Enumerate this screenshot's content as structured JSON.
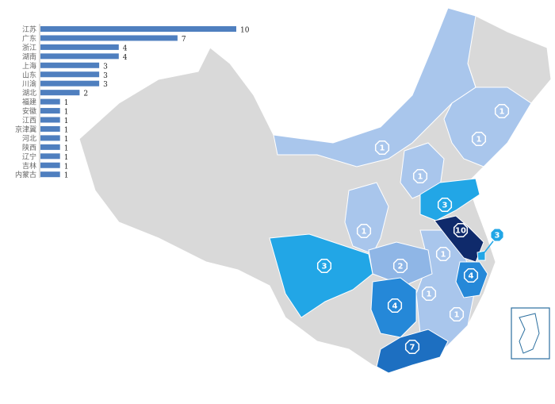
{
  "chart_data": [
    {
      "type": "bar",
      "orientation": "horizontal",
      "categories": [
        "江苏",
        "广东",
        "浙江",
        "湖南",
        "上海",
        "山东",
        "川渝",
        "湖北",
        "福建",
        "安徽",
        "江西",
        "京津冀",
        "河北",
        "陕西",
        "辽宁",
        "吉林",
        "内蒙古"
      ],
      "values": [
        10,
        7,
        4,
        4,
        3,
        3,
        3,
        2,
        1,
        1,
        1,
        1,
        1,
        1,
        1,
        1,
        1
      ],
      "bar_color": "#4f7fbf",
      "data_labels": true
    },
    {
      "type": "map",
      "regions": [
        {
          "name": "江苏",
          "value": 10,
          "color": "#0f2a6b"
        },
        {
          "name": "广东",
          "value": 7,
          "color": "#1d6fc1"
        },
        {
          "name": "浙江",
          "value": 4,
          "color": "#2588d8"
        },
        {
          "name": "湖南",
          "value": 4,
          "color": "#2588d8"
        },
        {
          "name": "上海",
          "value": 3,
          "color": "#22a6e6"
        },
        {
          "name": "山东",
          "value": 3,
          "color": "#22a6e6"
        },
        {
          "name": "川渝",
          "value": 3,
          "color": "#22a6e6"
        },
        {
          "name": "湖北",
          "value": 2,
          "color": "#8fb6e6"
        },
        {
          "name": "福建",
          "value": 1,
          "color": "#a9c6ec"
        },
        {
          "name": "安徽",
          "value": 1,
          "color": "#a9c6ec"
        },
        {
          "name": "江西",
          "value": 1,
          "color": "#a9c6ec"
        },
        {
          "name": "京津冀",
          "value": 1,
          "color": "#a9c6ec"
        },
        {
          "name": "河北",
          "value": 1,
          "color": "#a9c6ec"
        },
        {
          "name": "陕西",
          "value": 1,
          "color": "#a9c6ec"
        },
        {
          "name": "辽宁",
          "value": 1,
          "color": "#a9c6ec"
        },
        {
          "name": "吉林",
          "value": 1,
          "color": "#a9c6ec"
        },
        {
          "name": "内蒙古",
          "value": 1,
          "color": "#a9c6ec"
        }
      ],
      "no_data_color": "#d9d9d9"
    }
  ]
}
